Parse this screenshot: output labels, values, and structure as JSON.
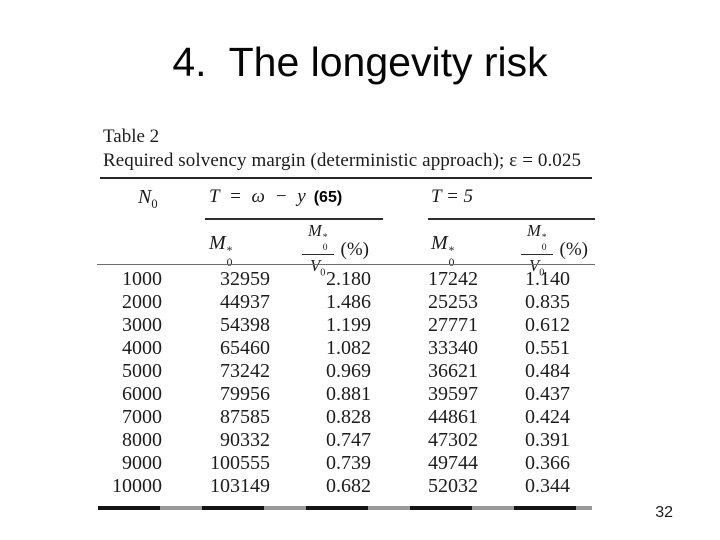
{
  "slide": {
    "title": "4.  The longevity risk",
    "page_number": "32"
  },
  "table": {
    "caption": {
      "line1": "Table 2",
      "line2": "Required solvency margin (deterministic approach); ε = 0.025"
    },
    "header": {
      "n_base": "N",
      "n_sub": "0",
      "group1_label": "T = ω − y",
      "group1_annotation": "(65)",
      "group2_label": "T = 5",
      "m_base": "M",
      "m_sup": "*",
      "m_sub": "0",
      "v_base": "V",
      "v_sub": "0",
      "percent_label": "(%)"
    },
    "rows": [
      [
        "1000",
        "32959",
        "2.180",
        "17242",
        "1.140"
      ],
      [
        "2000",
        "44937",
        "1.486",
        "25253",
        "0.835"
      ],
      [
        "3000",
        "54398",
        "1.199",
        "27771",
        "0.612"
      ],
      [
        "4000",
        "65460",
        "1.082",
        "33340",
        "0.551"
      ],
      [
        "5000",
        "73242",
        "0.969",
        "36621",
        "0.484"
      ],
      [
        "6000",
        "79956",
        "0.881",
        "39597",
        "0.437"
      ],
      [
        "7000",
        "87585",
        "0.828",
        "44861",
        "0.424"
      ],
      [
        "8000",
        "90332",
        "0.747",
        "47302",
        "0.391"
      ],
      [
        "9000",
        "100555",
        "0.739",
        "49744",
        "0.366"
      ],
      [
        "10000",
        "103149",
        "0.682",
        "52032",
        "0.344"
      ]
    ]
  },
  "colors": {
    "ink": "#1b1b1b",
    "background": "#ffffff"
  }
}
